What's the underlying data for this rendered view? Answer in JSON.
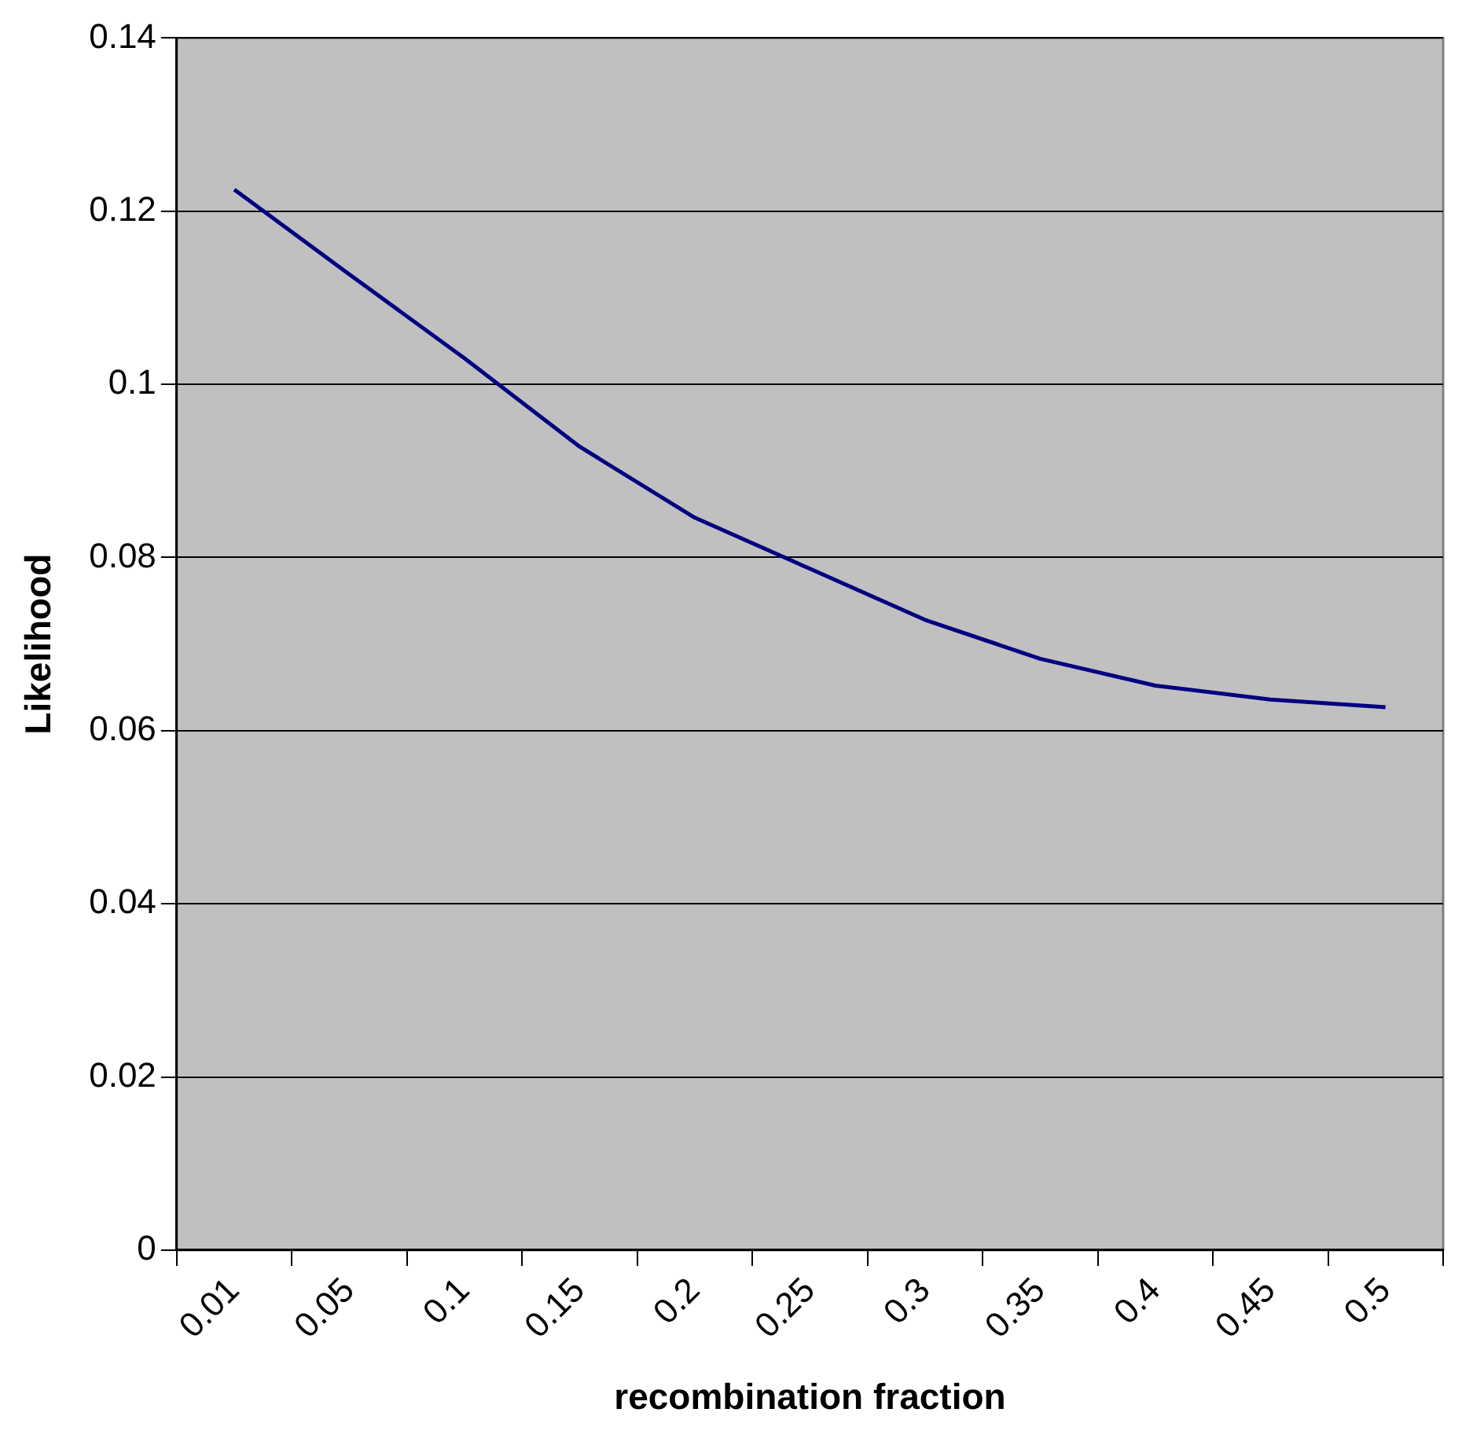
{
  "chart_data": {
    "type": "line",
    "xlabel": "recombination fraction",
    "ylabel": "Likelihood",
    "categories": [
      "0.01",
      "0.05",
      "0.1",
      "0.15",
      "0.2",
      "0.25",
      "0.3",
      "0.35",
      "0.4",
      "0.45",
      "0.5"
    ],
    "series": [
      {
        "color": "#000080",
        "values": [
          0.1225,
          0.1127,
          0.103,
          0.0928,
          0.0846,
          0.0787,
          0.0728,
          0.0683,
          0.0652,
          0.0636,
          0.0627
        ]
      }
    ],
    "ylim": [
      0,
      0.14
    ],
    "yticks": [
      0,
      0.02,
      0.04,
      0.06,
      0.08,
      0.1,
      0.12,
      0.14
    ],
    "grid": "y",
    "legend": false,
    "marker": "none",
    "line_style": "solid"
  }
}
